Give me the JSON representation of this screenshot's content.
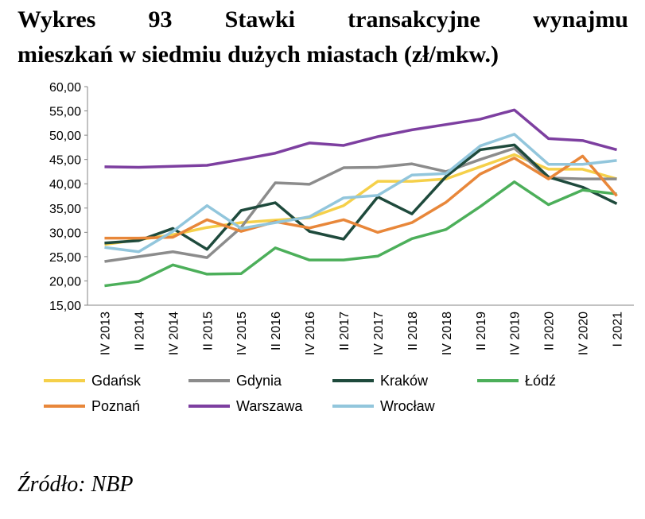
{
  "chart_data": {
    "type": "line",
    "title": [
      "Wykres 93 Stawki transakcyjne wynajmu",
      "mieszkań w siedmiu dużych miastach (zł/mkw.)"
    ],
    "source": "Źródło: NBP",
    "categories": [
      "IV 2013",
      "II 2014",
      "IV 2014",
      "II 2015",
      "IV 2015",
      "II 2016",
      "IV 2016",
      "II 2017",
      "IV 2017",
      "II 2018",
      "IV 2018",
      "II 2019",
      "IV 2019",
      "II 2020",
      "IV 2020",
      "I 2021"
    ],
    "series": [
      {
        "name": "Gdańsk",
        "color": "#f5d04a",
        "values": [
          27.5,
          28.5,
          29.5,
          31,
          32,
          32.5,
          33,
          35.5,
          40.5,
          40.5,
          41,
          43.5,
          46,
          43,
          43,
          41
        ]
      },
      {
        "name": "Gdynia",
        "color": "#8c8c8c",
        "values": [
          24,
          25,
          26,
          24.8,
          31,
          40.2,
          39.9,
          43.3,
          43.4,
          44.1,
          42.5,
          45,
          47.3,
          41.2,
          41,
          41
        ]
      },
      {
        "name": "Kraków",
        "color": "#1e4a3c",
        "values": [
          27.8,
          28.3,
          30.8,
          26.5,
          34.5,
          36.1,
          30.2,
          28.6,
          37.3,
          33.8,
          41.5,
          47,
          48,
          41.4,
          39.3,
          35.9
        ]
      },
      {
        "name": "Łódź",
        "color": "#4caf5a",
        "values": [
          19,
          19.9,
          23.3,
          21.4,
          21.5,
          26.8,
          24.3,
          24.3,
          25.1,
          28.7,
          30.6,
          35.3,
          40.4,
          35.7,
          38.7,
          37.9
        ]
      },
      {
        "name": "Poznań",
        "color": "#e8873a",
        "values": [
          28.8,
          28.8,
          29,
          32.6,
          30.2,
          32.2,
          30.9,
          32.6,
          30,
          32,
          36.2,
          42,
          45.3,
          41,
          45.7,
          37.5
        ]
      },
      {
        "name": "Warszawa",
        "color": "#7d3fa0",
        "values": [
          43.5,
          43.4,
          43.6,
          43.8,
          45,
          46.3,
          48.4,
          47.9,
          49.7,
          51.1,
          52.2,
          53.3,
          55.2,
          49.3,
          48.9,
          47
        ]
      },
      {
        "name": "Wrocław",
        "color": "#92c6dc",
        "values": [
          26.9,
          26,
          30.2,
          35.5,
          30.8,
          32,
          33.2,
          37.1,
          37.6,
          41.8,
          42.1,
          47.8,
          50.2,
          44,
          44,
          44.8
        ]
      }
    ],
    "ylim": [
      15,
      60
    ],
    "yticks": [
      {
        "value": 15,
        "label": "15,00"
      },
      {
        "value": 20,
        "label": "20,00"
      },
      {
        "value": 25,
        "label": "25,00"
      },
      {
        "value": 30,
        "label": "30,00"
      },
      {
        "value": 35,
        "label": "35,00"
      },
      {
        "value": 40,
        "label": "40,00"
      },
      {
        "value": 45,
        "label": "45,00"
      },
      {
        "value": 50,
        "label": "50,00"
      },
      {
        "value": 55,
        "label": "55,00"
      },
      {
        "value": 60,
        "label": "60,00"
      }
    ],
    "grid": false
  }
}
